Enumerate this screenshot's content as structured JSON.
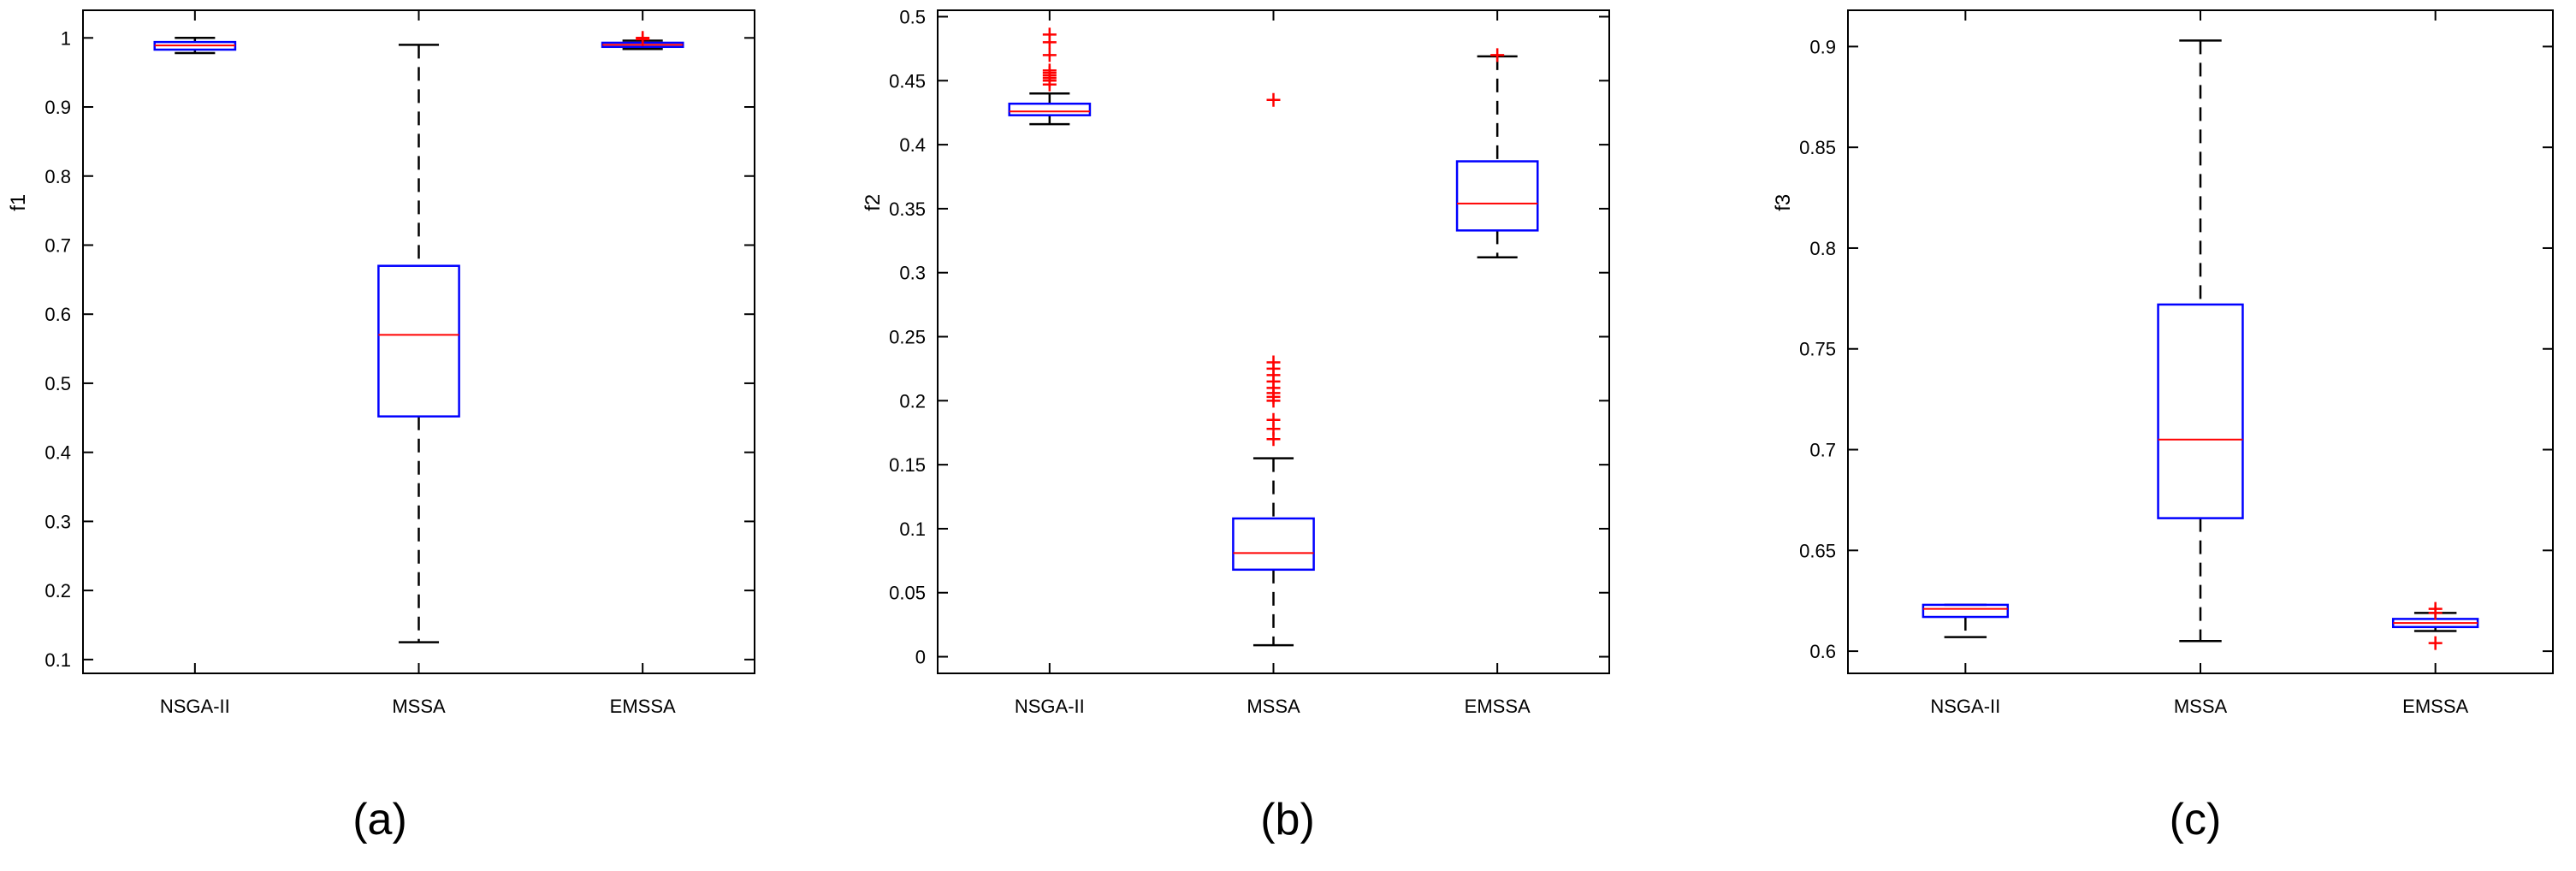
{
  "chart_data": [
    {
      "type": "box",
      "panel_label": "(a)",
      "ylabel": "f1",
      "categories": [
        "NSGA-II",
        "MSSA",
        "EMSSA"
      ],
      "ylim": [
        0.08,
        1.04
      ],
      "yticks": [
        0.1,
        0.2,
        0.3,
        0.4,
        0.5,
        0.6,
        0.7,
        0.8,
        0.9,
        1
      ],
      "ytick_labels": [
        "0.1",
        "0.2",
        "0.3",
        "0.4",
        "0.5",
        "0.6",
        "0.7",
        "0.8",
        "0.9",
        "1"
      ],
      "boxes": [
        {
          "name": "NSGA-II",
          "whisker_low": 0.978,
          "q1": 0.983,
          "median": 0.989,
          "q3": 0.994,
          "whisker_high": 1.0,
          "outliers": []
        },
        {
          "name": "MSSA",
          "whisker_low": 0.125,
          "q1": 0.452,
          "median": 0.57,
          "q3": 0.67,
          "whisker_high": 0.99,
          "outliers": []
        },
        {
          "name": "EMSSA",
          "whisker_low": 0.984,
          "q1": 0.987,
          "median": 0.99,
          "q3": 0.993,
          "whisker_high": 0.996,
          "outliers": [
            1.0,
            0.998
          ]
        }
      ]
    },
    {
      "type": "box",
      "panel_label": "(b)",
      "ylabel": "f2",
      "categories": [
        "NSGA-II",
        "MSSA",
        "EMSSA"
      ],
      "ylim": [
        -0.013,
        0.505
      ],
      "yticks": [
        0,
        0.05,
        0.1,
        0.15,
        0.2,
        0.25,
        0.3,
        0.35,
        0.4,
        0.45,
        0.5
      ],
      "ytick_labels": [
        "0",
        "0.05",
        "0.1",
        "0.15",
        "0.2",
        "0.25",
        "0.3",
        "0.35",
        "0.4",
        "0.45",
        "0.5"
      ],
      "boxes": [
        {
          "name": "NSGA-II",
          "whisker_low": 0.416,
          "q1": 0.423,
          "median": 0.426,
          "q3": 0.432,
          "whisker_high": 0.44,
          "outliers": [
            0.447,
            0.45,
            0.452,
            0.454,
            0.456,
            0.458,
            0.47,
            0.48,
            0.486
          ]
        },
        {
          "name": "MSSA",
          "whisker_low": 0.009,
          "q1": 0.068,
          "median": 0.081,
          "q3": 0.108,
          "whisker_high": 0.155,
          "outliers": [
            0.17,
            0.178,
            0.185,
            0.2,
            0.203,
            0.206,
            0.21,
            0.215,
            0.22,
            0.225,
            0.23,
            0.435
          ]
        },
        {
          "name": "EMSSA",
          "whisker_low": 0.312,
          "q1": 0.333,
          "median": 0.354,
          "q3": 0.387,
          "whisker_high": 0.469,
          "outliers": [
            0.47
          ]
        }
      ]
    },
    {
      "type": "box",
      "panel_label": "(c)",
      "ylabel": "f3",
      "categories": [
        "NSGA-II",
        "MSSA",
        "EMSSA"
      ],
      "ylim": [
        0.589,
        0.918
      ],
      "yticks": [
        0.6,
        0.65,
        0.7,
        0.75,
        0.8,
        0.85,
        0.9
      ],
      "ytick_labels": [
        "0.6",
        "0.65",
        "0.7",
        "0.75",
        "0.8",
        "0.85",
        "0.9"
      ],
      "boxes": [
        {
          "name": "NSGA-II",
          "whisker_low": 0.607,
          "q1": 0.617,
          "median": 0.621,
          "q3": 0.623,
          "whisker_high": 0.623,
          "outliers": []
        },
        {
          "name": "MSSA",
          "whisker_low": 0.605,
          "q1": 0.666,
          "median": 0.705,
          "q3": 0.772,
          "whisker_high": 0.903,
          "outliers": []
        },
        {
          "name": "EMSSA",
          "whisker_low": 0.61,
          "q1": 0.612,
          "median": 0.614,
          "q3": 0.616,
          "whisker_high": 0.619,
          "outliers": [
            0.604,
            0.621,
            0.619
          ]
        }
      ]
    }
  ],
  "colors": {
    "box": "#0000ff",
    "median": "#ff0000",
    "outlier": "#ff0000",
    "whisker": "#000000",
    "axes": "#000000"
  }
}
